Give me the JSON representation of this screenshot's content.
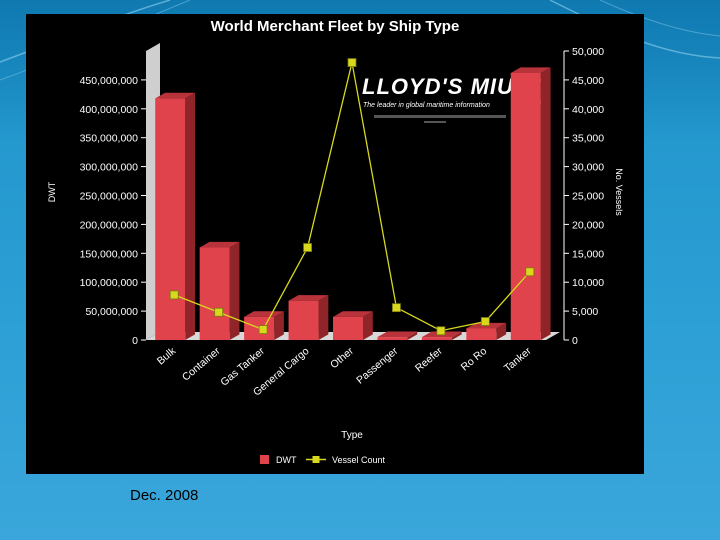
{
  "slide": {
    "caption": "Dec. 2008"
  },
  "colors": {
    "bar": "#e0434b",
    "line": "#d8d81e",
    "panel": "#000000",
    "floor": "#d8d8d8"
  },
  "logo": {
    "name": "LLOYD'S MIU",
    "tagline": "The leader in global maritime information"
  },
  "chart_data": {
    "type": "bar",
    "title": "World Merchant Fleet by Ship Type",
    "xlabel": "Type",
    "ylabel": "DWT",
    "y2label": "No. Vessels",
    "categories": [
      "Bulk",
      "Container",
      "Gas Tanker",
      "General Cargo",
      "Other",
      "Passenger",
      "Reefer",
      "Ro Ro",
      "Tanker"
    ],
    "ylim": [
      0,
      500000000
    ],
    "y2lim": [
      0,
      50000
    ],
    "yticks": [
      0,
      50000000,
      100000000,
      150000000,
      200000000,
      250000000,
      300000000,
      350000000,
      400000000,
      450000000
    ],
    "ytick_labels": [
      "0",
      "50,000,000",
      "100,000,000",
      "150,000,000",
      "200,000,000",
      "250,000,000",
      "300,000,000",
      "350,000,000",
      "400,000,000",
      "450,000,000"
    ],
    "y2ticks": [
      0,
      5000,
      10000,
      15000,
      20000,
      25000,
      30000,
      35000,
      40000,
      45000,
      50000
    ],
    "y2tick_labels": [
      "0",
      "5,000",
      "10,000",
      "15,000",
      "20,000",
      "25,000",
      "30,000",
      "35,000",
      "40,000",
      "45,000",
      "50,000"
    ],
    "series": [
      {
        "name": "DWT",
        "kind": "bar",
        "axis": "left",
        "values": [
          418000000,
          160000000,
          40000000,
          68000000,
          40000000,
          5000000,
          5000000,
          20000000,
          462000000
        ]
      },
      {
        "name": "Vessel Count",
        "kind": "line",
        "axis": "right",
        "values": [
          7800,
          4800,
          1800,
          16000,
          48000,
          5600,
          1600,
          3200,
          11800
        ]
      }
    ],
    "legend": {
      "position": "bottom-center",
      "entries": [
        "DWT",
        "Vessel Count"
      ]
    }
  }
}
